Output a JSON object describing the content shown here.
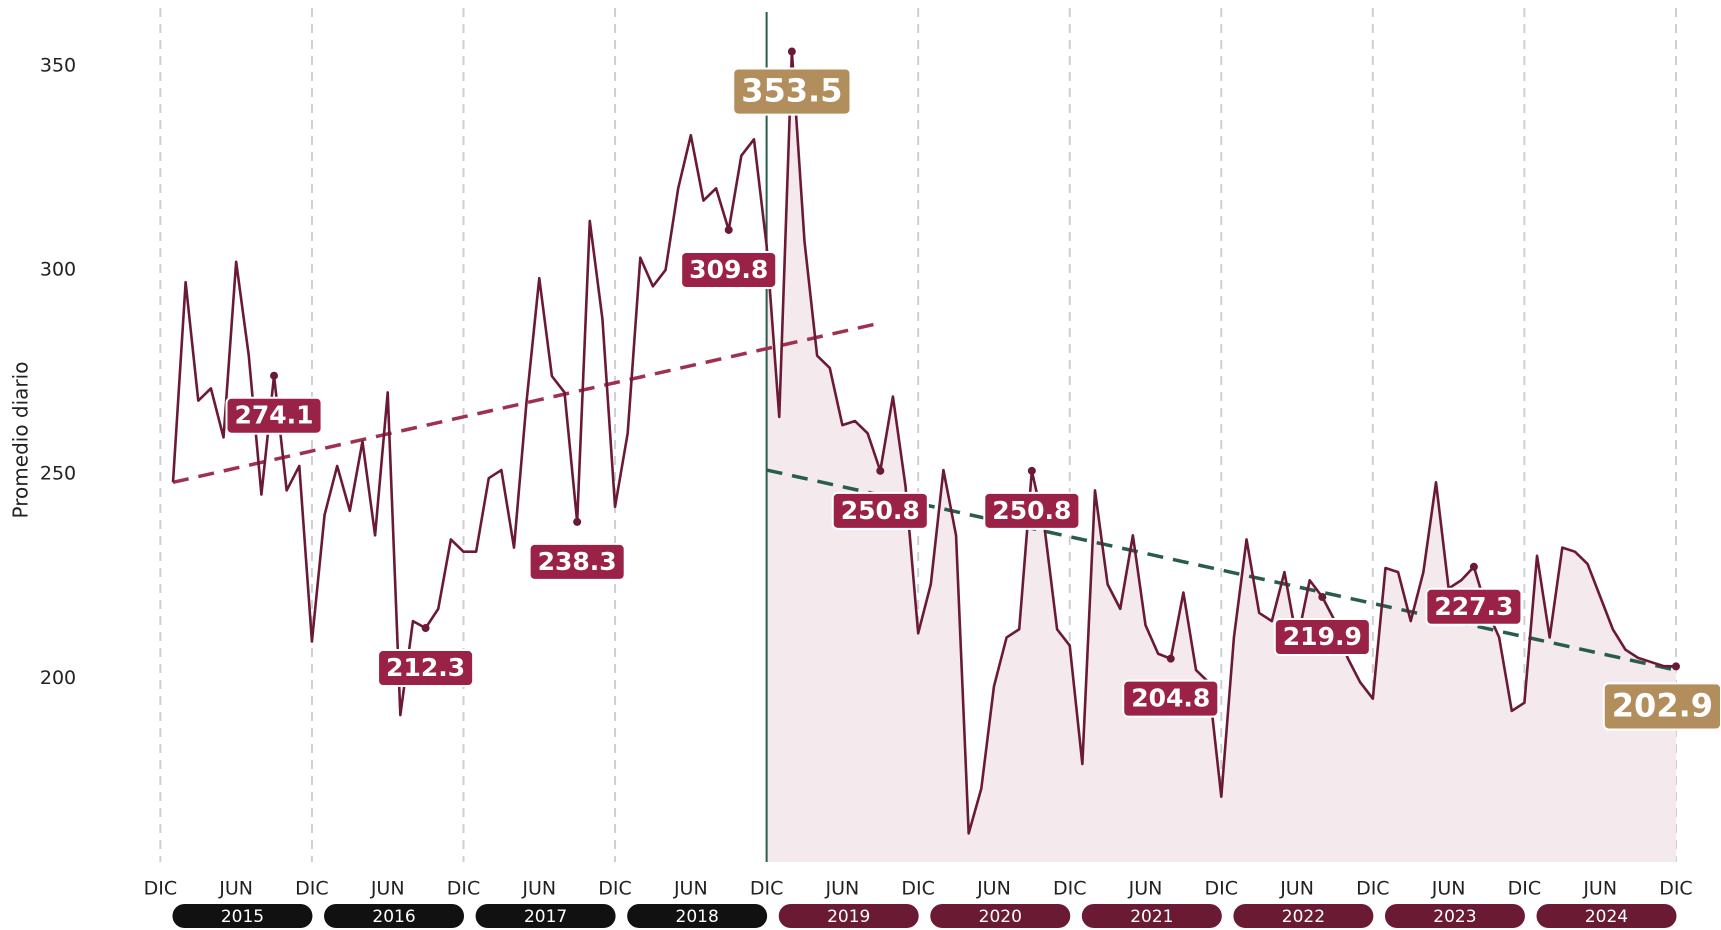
{
  "chart_data": {
    "type": "line",
    "y_label": "Promedio diario",
    "series": [
      {
        "name": "Promedio diario",
        "color": "#6b1a34",
        "values": [
          248,
          297,
          268,
          271,
          259,
          302,
          279,
          245,
          274.1,
          246,
          252,
          209,
          240,
          252,
          241,
          258,
          235,
          270,
          191,
          214,
          212.3,
          217,
          234,
          231,
          231,
          249,
          251,
          232,
          268,
          298,
          274,
          270,
          238.3,
          312,
          288,
          242,
          260,
          303,
          296,
          300,
          320,
          333,
          317,
          320,
          309.8,
          328,
          332,
          306,
          264,
          353.5,
          307,
          279,
          276,
          262,
          263,
          260,
          250.8,
          269,
          247,
          211,
          223,
          251,
          235,
          162,
          173,
          198,
          210,
          212,
          250.8,
          237,
          212,
          208,
          179,
          246,
          223,
          217,
          235,
          213,
          206,
          204.8,
          221,
          202,
          199,
          171,
          210,
          234,
          216,
          214,
          226,
          209,
          224,
          219.9,
          214,
          205,
          199,
          195,
          227,
          226,
          214,
          226,
          248,
          222,
          224,
          227.3,
          217,
          210,
          192,
          194,
          230,
          210,
          232,
          231,
          228,
          220,
          212,
          207,
          205,
          204,
          203,
          202.9
        ],
        "value_labels": [
          null,
          null,
          null,
          null,
          null,
          null,
          null,
          null,
          "274.1",
          null,
          null,
          null,
          null,
          null,
          null,
          null,
          null,
          null,
          null,
          null,
          "212.3",
          null,
          null,
          null,
          null,
          null,
          null,
          null,
          null,
          null,
          null,
          null,
          "238.3",
          null,
          null,
          null,
          null,
          null,
          null,
          null,
          null,
          null,
          null,
          null,
          "309.8",
          null,
          null,
          null,
          null,
          "353.5",
          null,
          null,
          null,
          null,
          null,
          null,
          "250.8",
          null,
          null,
          null,
          null,
          null,
          null,
          null,
          null,
          null,
          null,
          null,
          "250.8",
          null,
          null,
          null,
          null,
          null,
          null,
          null,
          null,
          null,
          null,
          "204.8",
          null,
          null,
          null,
          null,
          null,
          null,
          null,
          null,
          null,
          null,
          null,
          "219.9",
          null,
          null,
          null,
          null,
          null,
          null,
          null,
          null,
          null,
          null,
          null,
          "227.3",
          null,
          null,
          null,
          null,
          null,
          null,
          null,
          null,
          null,
          null,
          null,
          null,
          null,
          null,
          null,
          "202.9"
        ]
      }
    ],
    "label_color": "#9b2247",
    "peak_label_color": "#b38e5d",
    "highlight_from": 47,
    "highlight_color": "#f4eaed",
    "divider_color": "#285c4d",
    "trends": [
      {
        "color": "#a0304f",
        "from": [
          0,
          248
        ],
        "to": [
          56,
          287
        ]
      },
      {
        "color": "#285c4d",
        "from": [
          47,
          251
        ],
        "to": [
          119,
          202
        ]
      }
    ],
    "ylim": [
      155,
      360
    ],
    "yticks": [
      200,
      250,
      300,
      350
    ],
    "xlim": [
      -1,
      119
    ],
    "xticks": [
      {
        "value": -1,
        "label": "DIC"
      },
      {
        "value": 5,
        "label": "JUN"
      },
      {
        "value": 11,
        "label": "DIC"
      },
      {
        "value": 17,
        "label": "JUN"
      },
      {
        "value": 23,
        "label": "DIC"
      },
      {
        "value": 29,
        "label": "JUN"
      },
      {
        "value": 35,
        "label": "DIC"
      },
      {
        "value": 41,
        "label": "JUN"
      },
      {
        "value": 47,
        "label": "DIC"
      },
      {
        "value": 53,
        "label": "JUN"
      },
      {
        "value": 59,
        "label": "DIC"
      },
      {
        "value": 65,
        "label": "JUN"
      },
      {
        "value": 71,
        "label": "DIC"
      },
      {
        "value": 77,
        "label": "JUN"
      },
      {
        "value": 83,
        "label": "DIC"
      },
      {
        "value": 89,
        "label": "JUN"
      },
      {
        "value": 95,
        "label": "DIC"
      },
      {
        "value": 101,
        "label": "JUN"
      },
      {
        "value": 107,
        "label": "DIC"
      },
      {
        "value": 113,
        "label": "JUN"
      },
      {
        "value": 119,
        "label": "DIC"
      }
    ],
    "years": [
      {
        "label": "2015",
        "color": "#111111"
      },
      {
        "label": "2016",
        "color": "#111111"
      },
      {
        "label": "2017",
        "color": "#111111"
      },
      {
        "label": "2018",
        "color": "#111111"
      },
      {
        "label": "2019",
        "color": "#6b1a34"
      },
      {
        "label": "2020",
        "color": "#6b1a34"
      },
      {
        "label": "2021",
        "color": "#6b1a34"
      },
      {
        "label": "2022",
        "color": "#6b1a34"
      },
      {
        "label": "2023",
        "color": "#6b1a34"
      },
      {
        "label": "2024",
        "color": "#6b1a34"
      }
    ],
    "grid": true
  }
}
